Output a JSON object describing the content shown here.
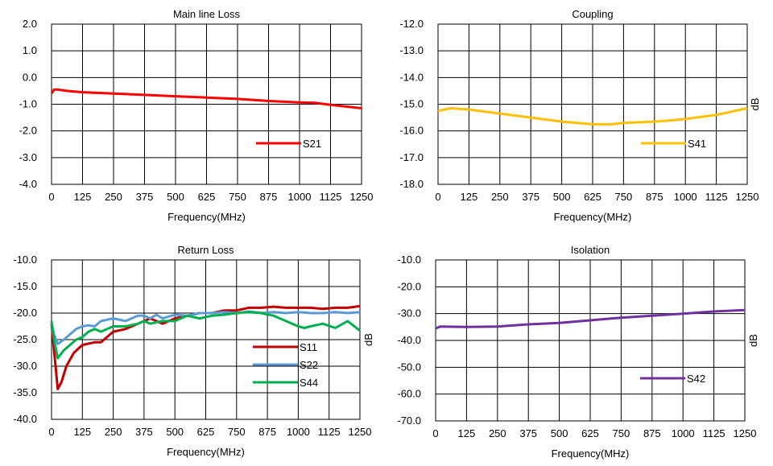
{
  "chart_data": [
    {
      "type": "line",
      "title": "Main line Loss",
      "xlabel": "Frequency(MHz)",
      "ylabel": "",
      "xlim": [
        0,
        1250
      ],
      "ylim": [
        -4,
        2
      ],
      "xticks": [
        0,
        125,
        250,
        375,
        500,
        625,
        750,
        875,
        1000,
        1125,
        1250
      ],
      "yticks": [
        "2.0",
        "1.0",
        "0.0",
        "-1.0",
        "-2.0",
        "-3.0",
        "-4.0"
      ],
      "grid": true,
      "legend_position": "lower-right",
      "series": [
        {
          "name": "S21",
          "color": "#ff0000",
          "x": [
            0,
            10,
            25,
            60,
            125,
            250,
            375,
            500,
            625,
            750,
            875,
            1000,
            1060,
            1125,
            1250
          ],
          "y": [
            -0.6,
            -0.45,
            -0.45,
            -0.5,
            -0.55,
            -0.6,
            -0.65,
            -0.7,
            -0.75,
            -0.8,
            -0.88,
            -0.93,
            -0.95,
            -1.02,
            -1.15
          ]
        }
      ]
    },
    {
      "type": "line",
      "title": "Coupling",
      "xlabel": "Frequency(MHz)",
      "ylabel": "dB",
      "xlim": [
        0,
        1250
      ],
      "ylim": [
        -18,
        -12
      ],
      "xticks": [
        0,
        125,
        250,
        375,
        500,
        625,
        750,
        875,
        1000,
        1125,
        1250
      ],
      "yticks": [
        "-12.0",
        "-13.0",
        "-14.0",
        "-15.0",
        "-16.0",
        "-17.0",
        "-18.0"
      ],
      "grid": true,
      "legend_position": "lower-right",
      "series": [
        {
          "name": "S41",
          "color": "#ffc000",
          "x": [
            0,
            50,
            125,
            250,
            375,
            500,
            625,
            700,
            750,
            875,
            950,
            1000,
            1125,
            1250
          ],
          "y": [
            -15.25,
            -15.15,
            -15.2,
            -15.35,
            -15.5,
            -15.65,
            -15.75,
            -15.75,
            -15.7,
            -15.65,
            -15.6,
            -15.55,
            -15.4,
            -15.15
          ]
        }
      ]
    },
    {
      "type": "line",
      "title": "Return Loss",
      "xlabel": "Frequency(MHz)",
      "ylabel": "dB",
      "xlim": [
        0,
        1250
      ],
      "ylim": [
        -40,
        -10
      ],
      "xticks": [
        0,
        125,
        250,
        375,
        500,
        625,
        750,
        875,
        1000,
        1125,
        1250
      ],
      "yticks": [
        "-10.0",
        "-15.0",
        "-20.0",
        "-25.0",
        "-30.0",
        "-35.0",
        "-40.0"
      ],
      "grid": true,
      "legend_position": "lower-right",
      "series": [
        {
          "name": "S11",
          "color": "#c00000",
          "x": [
            0,
            10,
            25,
            40,
            60,
            90,
            125,
            175,
            200,
            250,
            300,
            350,
            400,
            450,
            500,
            550,
            600,
            650,
            700,
            750,
            800,
            850,
            900,
            950,
            1000,
            1050,
            1100,
            1150,
            1200,
            1250
          ],
          "y": [
            -22,
            -27,
            -34.3,
            -33,
            -30,
            -27.5,
            -26,
            -25.5,
            -25.5,
            -23.5,
            -23,
            -22,
            -21,
            -22,
            -21,
            -20.5,
            -20,
            -20,
            -19.5,
            -19.5,
            -19,
            -19,
            -18.8,
            -19,
            -19,
            -19,
            -19.2,
            -19,
            -19,
            -18.7
          ]
        },
        {
          "name": "S22",
          "color": "#5b9bd5",
          "x": [
            0,
            10,
            25,
            50,
            75,
            100,
            125,
            150,
            175,
            200,
            250,
            300,
            350,
            375,
            400,
            425,
            450,
            500,
            550,
            600,
            650,
            700,
            750,
            800,
            850,
            900,
            950,
            1000,
            1050,
            1100,
            1150,
            1200,
            1250
          ],
          "y": [
            -22,
            -24,
            -25.8,
            -25,
            -24,
            -23,
            -22.5,
            -22.3,
            -22.5,
            -21.5,
            -21,
            -21.5,
            -20.5,
            -20.5,
            -21,
            -20.3,
            -21,
            -20.3,
            -20.5,
            -20,
            -20,
            -19.8,
            -20,
            -19.7,
            -20,
            -19.8,
            -20,
            -19.8,
            -20,
            -20,
            -19.8,
            -20,
            -19.8
          ]
        },
        {
          "name": "S44",
          "color": "#00b050",
          "x": [
            0,
            10,
            25,
            50,
            75,
            100,
            125,
            150,
            175,
            200,
            250,
            300,
            350,
            375,
            400,
            450,
            500,
            550,
            600,
            650,
            700,
            750,
            800,
            850,
            900,
            950,
            1000,
            1025,
            1050,
            1100,
            1150,
            1200,
            1250
          ],
          "y": [
            -21.5,
            -25,
            -28.5,
            -27,
            -26,
            -25,
            -24.5,
            -23.5,
            -23,
            -23.5,
            -22.5,
            -22.5,
            -22,
            -21.5,
            -22,
            -21.5,
            -21.5,
            -20.5,
            -21,
            -20.5,
            -20.3,
            -20,
            -19.8,
            -20,
            -20.5,
            -21.5,
            -22.5,
            -22.8,
            -22.5,
            -22,
            -22.8,
            -21.5,
            -23.3
          ]
        }
      ]
    },
    {
      "type": "line",
      "title": "Isolation",
      "xlabel": "Frequency(MHz)",
      "ylabel": "dB",
      "xlim": [
        0,
        1250
      ],
      "ylim": [
        -70,
        -10
      ],
      "xticks": [
        0,
        125,
        250,
        375,
        500,
        625,
        750,
        875,
        1000,
        1125,
        1250
      ],
      "yticks": [
        "-10.0",
        "-20.0",
        "-30.0",
        "-40.0",
        "-50.0",
        "-60.0",
        "-70.0"
      ],
      "grid": true,
      "legend_position": "lower-right",
      "series": [
        {
          "name": "S42",
          "color": "#7030a0",
          "x": [
            0,
            20,
            125,
            250,
            375,
            500,
            625,
            750,
            875,
            1000,
            1125,
            1250
          ],
          "y": [
            -35.5,
            -34.8,
            -35,
            -34.8,
            -34,
            -33.5,
            -32.5,
            -31.5,
            -30.8,
            -30,
            -29.2,
            -28.7
          ]
        }
      ]
    }
  ]
}
